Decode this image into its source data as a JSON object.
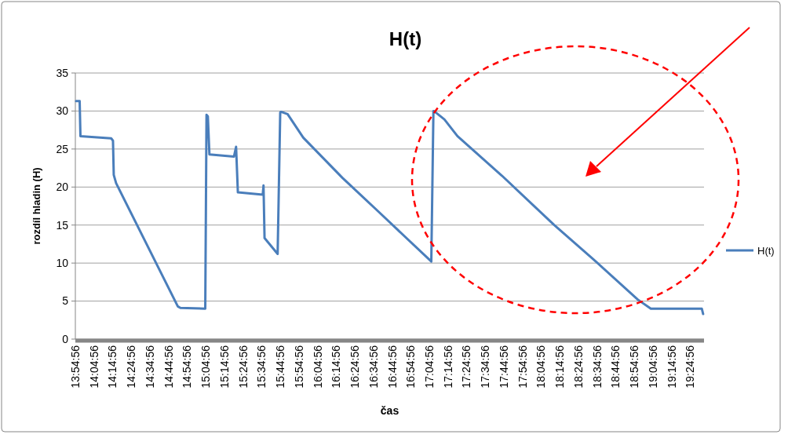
{
  "chart_data": {
    "type": "line",
    "title": "H(t)",
    "xlabel": "čas",
    "ylabel": "rozdíl hladin (H)",
    "xlim": [
      13.9156,
      19.54
    ],
    "ylim": [
      0,
      35
    ],
    "yticks": [
      0,
      5,
      10,
      15,
      20,
      25,
      30,
      35
    ],
    "xticks": [
      {
        "value": 13.9156,
        "label": "13:54:56"
      },
      {
        "value": 14.0822,
        "label": "14:04:56"
      },
      {
        "value": 14.2489,
        "label": "14:14:56"
      },
      {
        "value": 14.4156,
        "label": "14:24:56"
      },
      {
        "value": 14.5822,
        "label": "14:34:56"
      },
      {
        "value": 14.7489,
        "label": "14:44:56"
      },
      {
        "value": 14.9156,
        "label": "14:54:56"
      },
      {
        "value": 15.0822,
        "label": "15:04:56"
      },
      {
        "value": 15.2489,
        "label": "15:14:56"
      },
      {
        "value": 15.4156,
        "label": "15:24:56"
      },
      {
        "value": 15.5822,
        "label": "15:34:56"
      },
      {
        "value": 15.7489,
        "label": "15:44:56"
      },
      {
        "value": 15.9156,
        "label": "15:54:56"
      },
      {
        "value": 16.0822,
        "label": "16:04:56"
      },
      {
        "value": 16.2489,
        "label": "16:14:56"
      },
      {
        "value": 16.4156,
        "label": "16:24:56"
      },
      {
        "value": 16.5822,
        "label": "16:34:56"
      },
      {
        "value": 16.7489,
        "label": "16:44:56"
      },
      {
        "value": 16.9156,
        "label": "16:54:56"
      },
      {
        "value": 17.0822,
        "label": "17:04:56"
      },
      {
        "value": 17.2489,
        "label": "17:14:56"
      },
      {
        "value": 17.4156,
        "label": "17:24:56"
      },
      {
        "value": 17.5822,
        "label": "17:34:56"
      },
      {
        "value": 17.7489,
        "label": "17:44:56"
      },
      {
        "value": 17.9156,
        "label": "17:54:56"
      },
      {
        "value": 18.0822,
        "label": "18:04:56"
      },
      {
        "value": 18.2489,
        "label": "18:14:56"
      },
      {
        "value": 18.4156,
        "label": "18:24:56"
      },
      {
        "value": 18.5822,
        "label": "18:34:56"
      },
      {
        "value": 18.7489,
        "label": "18:44:56"
      },
      {
        "value": 18.9156,
        "label": "18:54:56"
      },
      {
        "value": 19.0822,
        "label": "19:04:56"
      },
      {
        "value": 19.2489,
        "label": "19:14:56"
      },
      {
        "value": 19.4156,
        "label": "19:24:56"
      }
    ],
    "grid": "y",
    "legend": "right",
    "marker": "none",
    "series": [
      {
        "name": "H(t)",
        "color": "#4a7ebb",
        "x": [
          13.9226,
          13.9542,
          13.9612,
          14.2362,
          14.2523,
          14.2593,
          14.2804,
          14.8324,
          14.8556,
          15.0779,
          15.0891,
          15.1011,
          15.1151,
          15.3347,
          15.3536,
          15.3697,
          15.5921,
          15.5991,
          15.6082,
          15.7254,
          15.7485,
          15.7555,
          15.8145,
          15.9548,
          16.3055,
          16.6324,
          17.1002,
          17.1191,
          17.1233,
          17.2174,
          17.3338,
          17.7315,
          18.1994,
          18.5501,
          18.9472,
          19.0643,
          19.5203,
          19.5322
        ],
        "values": [
          31.3,
          31.3,
          26.7,
          26.4,
          26.1,
          21.6,
          20.5,
          4.3,
          4.1,
          4.0,
          29.5,
          29.3,
          24.3,
          24.0,
          25.3,
          19.3,
          19.0,
          20.2,
          13.3,
          11.2,
          29.8,
          29.9,
          29.6,
          26.5,
          21.2,
          16.7,
          10.2,
          30.0,
          30.0,
          28.9,
          26.7,
          21.5,
          15.0,
          10.5,
          5.2,
          4.0,
          4.0,
          3.3
        ]
      }
    ]
  }
}
